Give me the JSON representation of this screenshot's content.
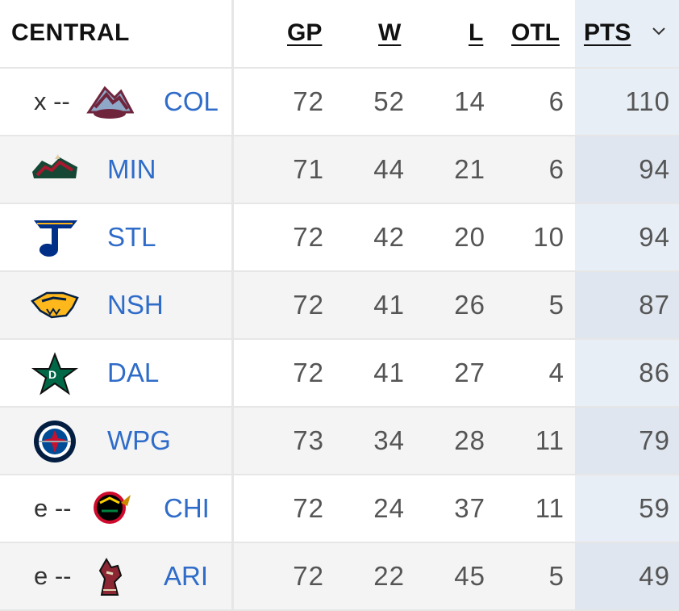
{
  "header": {
    "conference": "CENTRAL",
    "columns": {
      "gp": "GP",
      "w": "W",
      "l": "L",
      "otl": "OTL",
      "pts": "PTS"
    },
    "sort_icon": "chevron-down-icon"
  },
  "teams": [
    {
      "clinch": "x --",
      "abbr": "COL",
      "logo": "avalanche-logo",
      "gp": "72",
      "w": "52",
      "l": "14",
      "otl": "6",
      "pts": "110"
    },
    {
      "clinch": "",
      "abbr": "MIN",
      "logo": "wild-logo",
      "gp": "71",
      "w": "44",
      "l": "21",
      "otl": "6",
      "pts": "94"
    },
    {
      "clinch": "",
      "abbr": "STL",
      "logo": "blues-logo",
      "gp": "72",
      "w": "42",
      "l": "20",
      "otl": "10",
      "pts": "94"
    },
    {
      "clinch": "",
      "abbr": "NSH",
      "logo": "predators-logo",
      "gp": "72",
      "w": "41",
      "l": "26",
      "otl": "5",
      "pts": "87"
    },
    {
      "clinch": "",
      "abbr": "DAL",
      "logo": "stars-logo",
      "gp": "72",
      "w": "41",
      "l": "27",
      "otl": "4",
      "pts": "86"
    },
    {
      "clinch": "",
      "abbr": "WPG",
      "logo": "jets-logo",
      "gp": "73",
      "w": "34",
      "l": "28",
      "otl": "11",
      "pts": "79"
    },
    {
      "clinch": "e --",
      "abbr": "CHI",
      "logo": "blackhawks-logo",
      "gp": "72",
      "w": "24",
      "l": "37",
      "otl": "11",
      "pts": "59"
    },
    {
      "clinch": "e --",
      "abbr": "ARI",
      "logo": "coyotes-logo",
      "gp": "72",
      "w": "22",
      "l": "45",
      "otl": "5",
      "pts": "49"
    }
  ],
  "colors": {
    "link": "#2f6cc9",
    "number": "#555555",
    "pts_highlight": "#e8eef6",
    "alt_row": "#f4f4f4"
  }
}
